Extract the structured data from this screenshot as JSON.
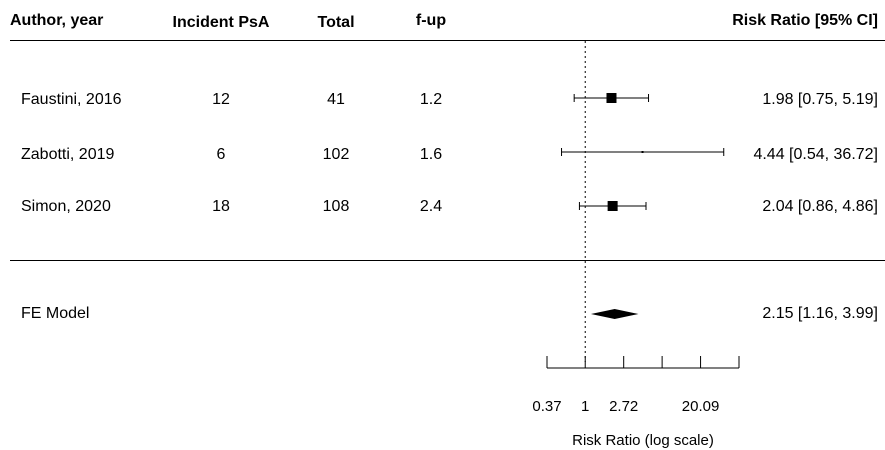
{
  "headers": {
    "author": "Author, year",
    "incident": "Incident PsA",
    "total": "Total",
    "fup": "f-up",
    "rr": "Risk Ratio [95% CI]"
  },
  "rows": [
    {
      "author": "Faustini, 2016",
      "incident": "12",
      "total": "41",
      "fup": "1.2",
      "rr_text": "1.98 [0.75,  5.19]"
    },
    {
      "author": "Zabotti, 2019",
      "incident": "6",
      "total": "102",
      "fup": "1.6",
      "rr_text": "4.44 [0.54, 36.72]"
    },
    {
      "author": "Simon, 2020",
      "incident": "18",
      "total": "108",
      "fup": "2.4",
      "rr_text": "2.04 [0.86,  4.86]"
    }
  ],
  "summary": {
    "label": "FE Model",
    "rr_text": "2.15 [1.16,  3.99]"
  },
  "chart_data": {
    "type": "forest",
    "scale": "log",
    "reference_line": 1,
    "xlabel": "Risk Ratio (log scale)",
    "xticks": [
      0.37,
      1,
      2.72,
      20.09
    ],
    "xticks_unlabeled": [
      7.39,
      54.6
    ],
    "xlim": [
      0.37,
      54.6
    ],
    "studies": [
      {
        "label": "Faustini, 2016",
        "estimate": 1.98,
        "lower": 0.75,
        "upper": 5.19
      },
      {
        "label": "Zabotti, 2019",
        "estimate": 4.44,
        "lower": 0.54,
        "upper": 36.72
      },
      {
        "label": "Simon, 2020",
        "estimate": 2.04,
        "lower": 0.86,
        "upper": 4.86
      }
    ],
    "pooled": {
      "label": "FE Model",
      "estimate": 2.15,
      "lower": 1.16,
      "upper": 3.99
    }
  }
}
